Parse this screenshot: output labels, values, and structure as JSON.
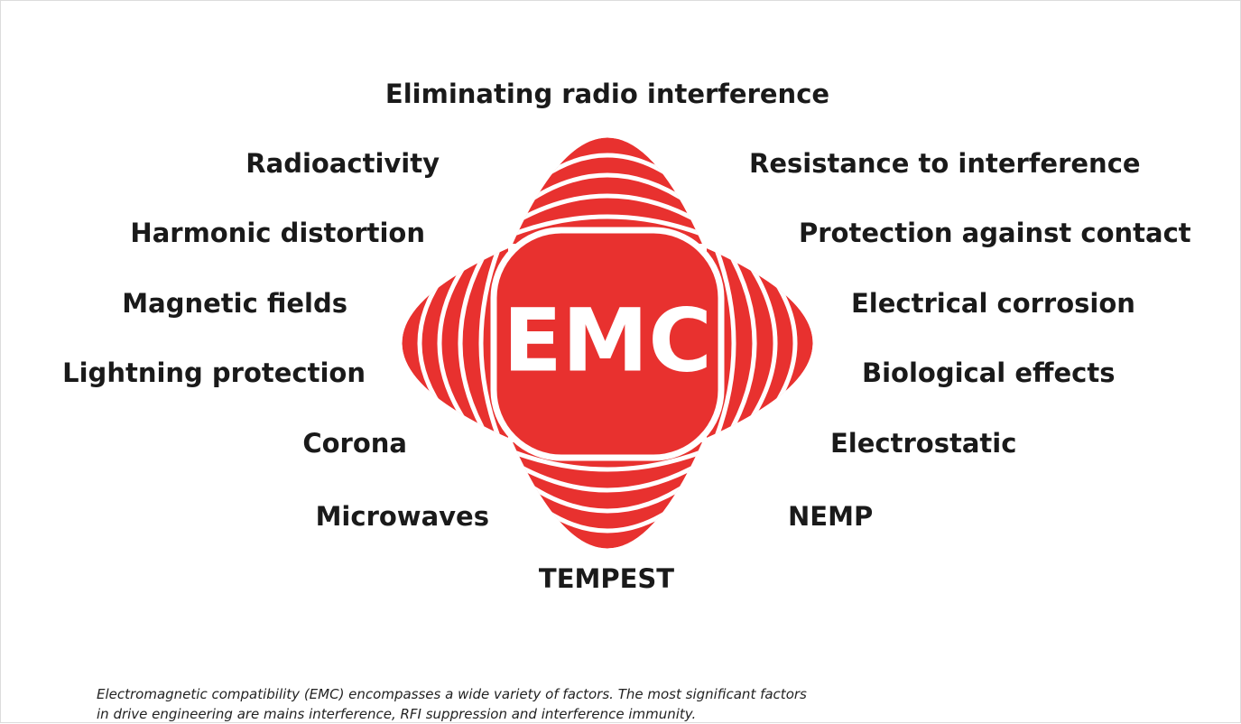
{
  "center_label": "EMC",
  "terms": {
    "top": "Eliminating radio interference",
    "left": [
      "Radioactivity",
      "Harmonic distortion",
      "Magnetic fields",
      "Lightning protection",
      "Corona",
      "Microwaves"
    ],
    "right": [
      "Resistance to interference",
      "Protection against contact",
      "Electrical corrosion",
      "Biological effects",
      "Electrostatic",
      "NEMP"
    ],
    "bottom": "TEMPEST"
  },
  "caption": [
    "Electromagnetic compatibility (EMC) encompasses a wide variety of factors. The most significant factors",
    "in drive engineering are mains interference, RFI suppression and interference immunity."
  ]
}
